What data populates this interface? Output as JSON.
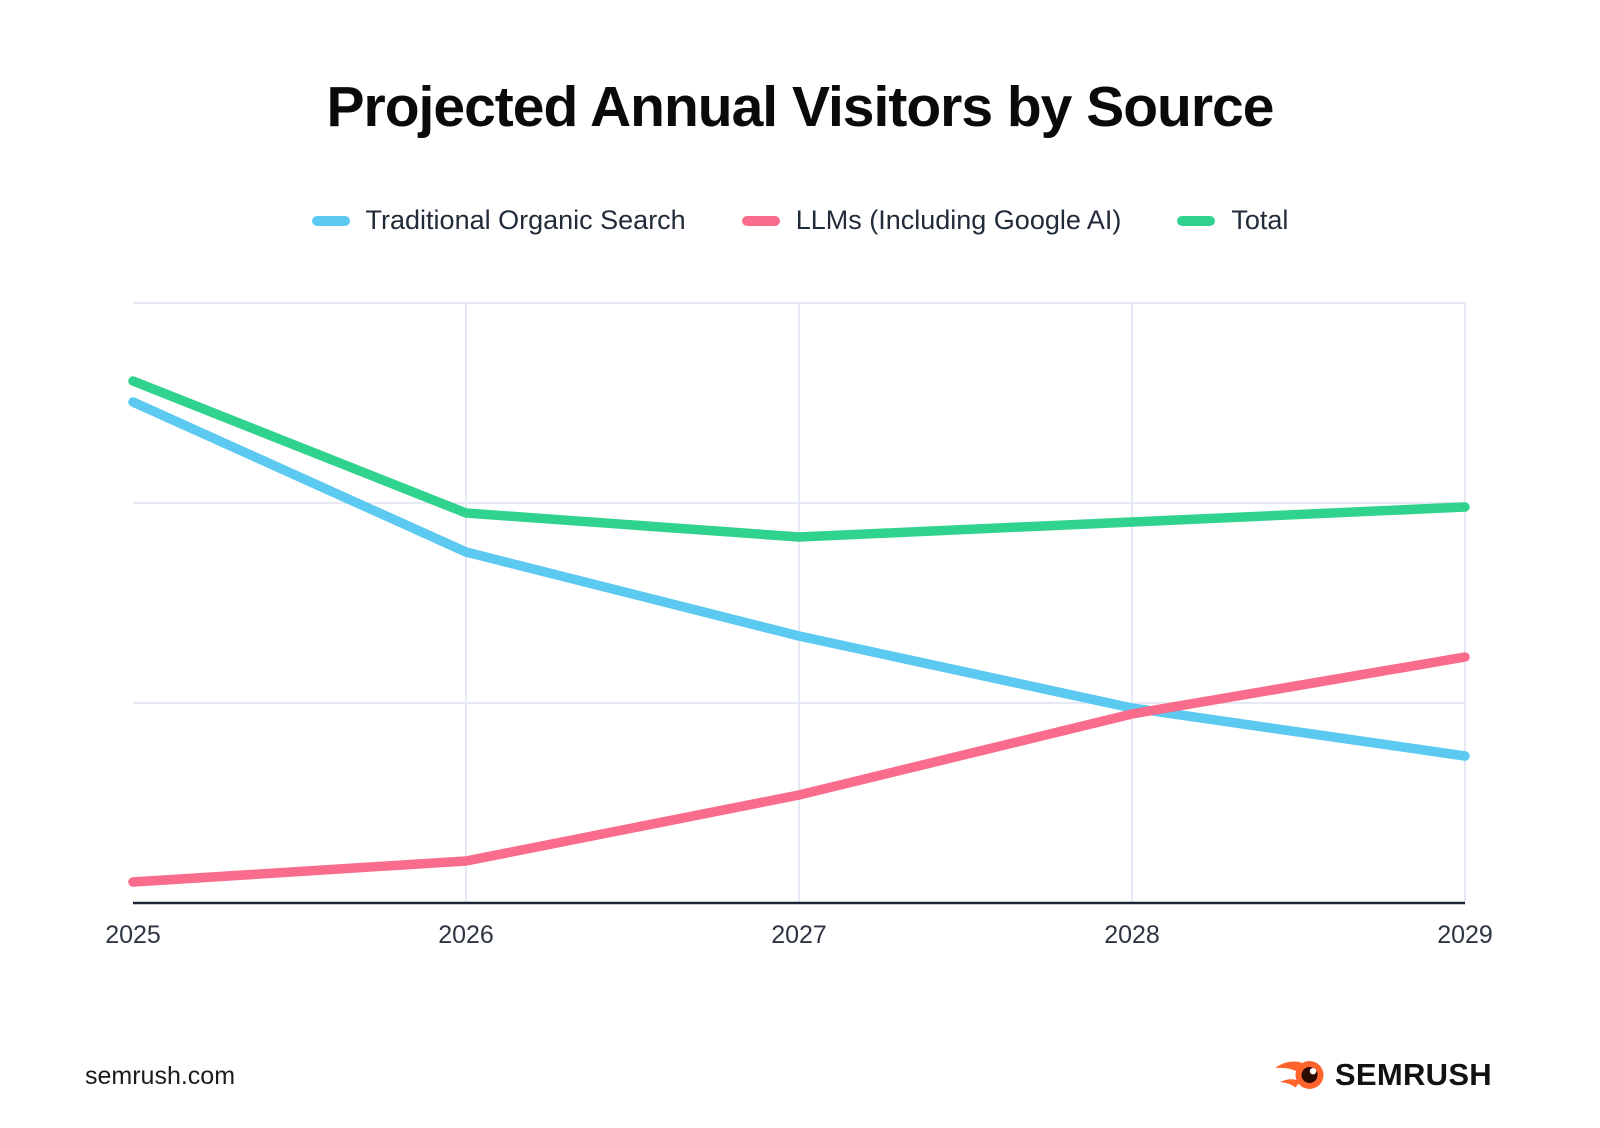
{
  "header": {
    "title": "Projected Annual Visitors by Source"
  },
  "legend": {
    "items": [
      {
        "label": "Traditional Organic Search",
        "color": "#5CC9F1"
      },
      {
        "label": "LLMs (Including Google AI)",
        "color": "#F96C8B"
      },
      {
        "label": "Total",
        "color": "#30D38E"
      }
    ]
  },
  "chart_data": {
    "type": "line",
    "title": "Projected Annual Visitors by Source",
    "categories": [
      "2025",
      "2026",
      "2027",
      "2028",
      "2029"
    ],
    "series": [
      {
        "name": "Traditional Organic Search",
        "color": "#5CC9F1",
        "values": [
          83.5,
          58.5,
          44.5,
          32.5,
          24.5
        ]
      },
      {
        "name": "LLMs (Including Google AI)",
        "color": "#F96C8B",
        "values": [
          3.5,
          7,
          18,
          31.5,
          41
        ]
      },
      {
        "name": "Total",
        "color": "#30D38E",
        "values": [
          87,
          65,
          61,
          63.5,
          66
        ]
      }
    ],
    "xlabel": "",
    "ylabel": "",
    "ylim": [
      0,
      100
    ],
    "y_ticks_labeled": false,
    "grid": true,
    "legend_position": "top"
  },
  "colors": {
    "grid": "#E5E9F3",
    "axis": "#1A2637",
    "x_label": "#2E3542",
    "logo_orange": "#FF642D",
    "logo_core": "#2B0A02"
  },
  "footer": {
    "source": "semrush.com",
    "brand": "SEMRUSH"
  }
}
